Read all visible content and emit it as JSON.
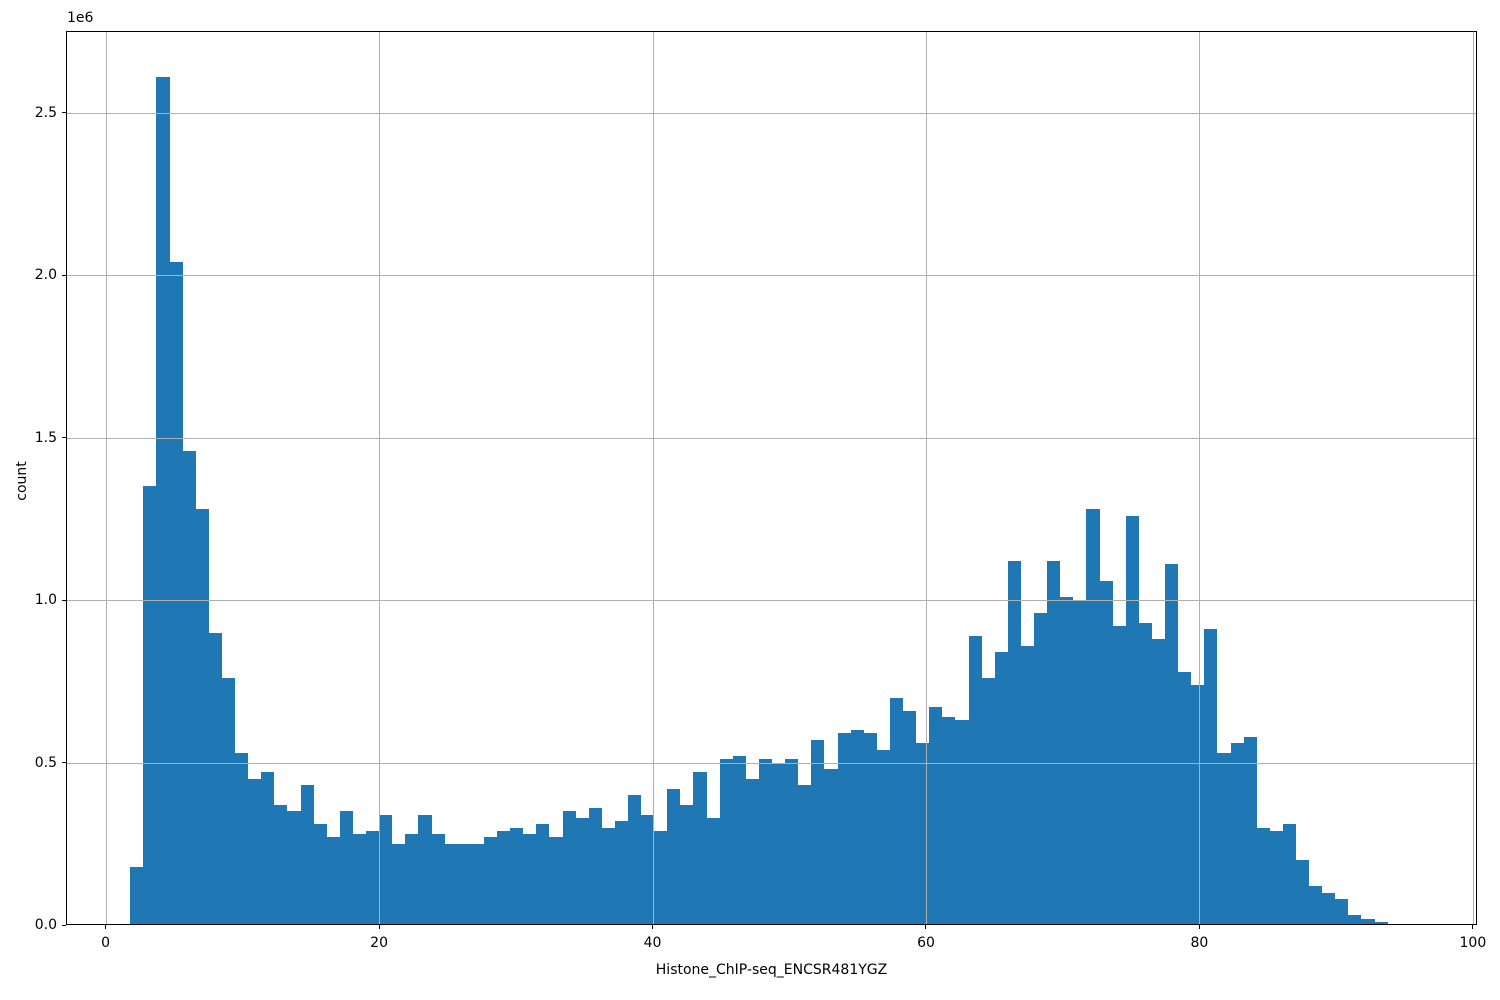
{
  "figure": {
    "background": "#ffffff"
  },
  "chart_data": {
    "type": "bar",
    "subtype": "histogram",
    "title": "",
    "xlabel": "Histone_ChIP-seq_ENCSR481YGZ",
    "ylabel": "count",
    "y_offset_label": "1e6",
    "bar_color": "#1f77b4",
    "grid_color": "#b0b0b0",
    "spine_color": "#000000",
    "grid": true,
    "grid_above_bars": true,
    "legend": null,
    "xlim": [
      -2.9,
      100.3
    ],
    "ylim_1e6": [
      0,
      2.751
    ],
    "x_ticks": [
      0,
      20,
      40,
      60,
      80,
      100
    ],
    "x_tick_labels": [
      "0",
      "20",
      "40",
      "60",
      "80",
      "100"
    ],
    "y_ticks_1e6": [
      0.0,
      0.5,
      1.0,
      1.5,
      2.0,
      2.5
    ],
    "y_tick_labels": [
      "0.0",
      "0.5",
      "1.0",
      "1.5",
      "2.0",
      "2.5"
    ],
    "bins": {
      "start": 1.8,
      "width": 0.958,
      "count": 96
    },
    "values_1e6": [
      0.18,
      1.35,
      2.61,
      2.04,
      1.46,
      1.28,
      0.9,
      0.76,
      0.53,
      0.45,
      0.47,
      0.37,
      0.35,
      0.43,
      0.31,
      0.27,
      0.35,
      0.28,
      0.29,
      0.34,
      0.25,
      0.28,
      0.34,
      0.28,
      0.25,
      0.25,
      0.25,
      0.27,
      0.29,
      0.3,
      0.28,
      0.31,
      0.27,
      0.35,
      0.33,
      0.36,
      0.3,
      0.32,
      0.4,
      0.34,
      0.29,
      0.42,
      0.37,
      0.47,
      0.33,
      0.51,
      0.52,
      0.45,
      0.51,
      0.5,
      0.51,
      0.43,
      0.57,
      0.48,
      0.59,
      0.6,
      0.59,
      0.54,
      0.7,
      0.66,
      0.56,
      0.67,
      0.64,
      0.63,
      0.89,
      0.76,
      0.84,
      1.12,
      0.86,
      0.96,
      1.12,
      1.01,
      1.0,
      1.28,
      1.06,
      0.92,
      1.26,
      0.93,
      0.88,
      1.11,
      0.78,
      0.74,
      0.91,
      0.53,
      0.56,
      0.58,
      0.3,
      0.29,
      0.31,
      0.2,
      0.12,
      0.1,
      0.08,
      0.03,
      0.02,
      0.01
    ]
  }
}
